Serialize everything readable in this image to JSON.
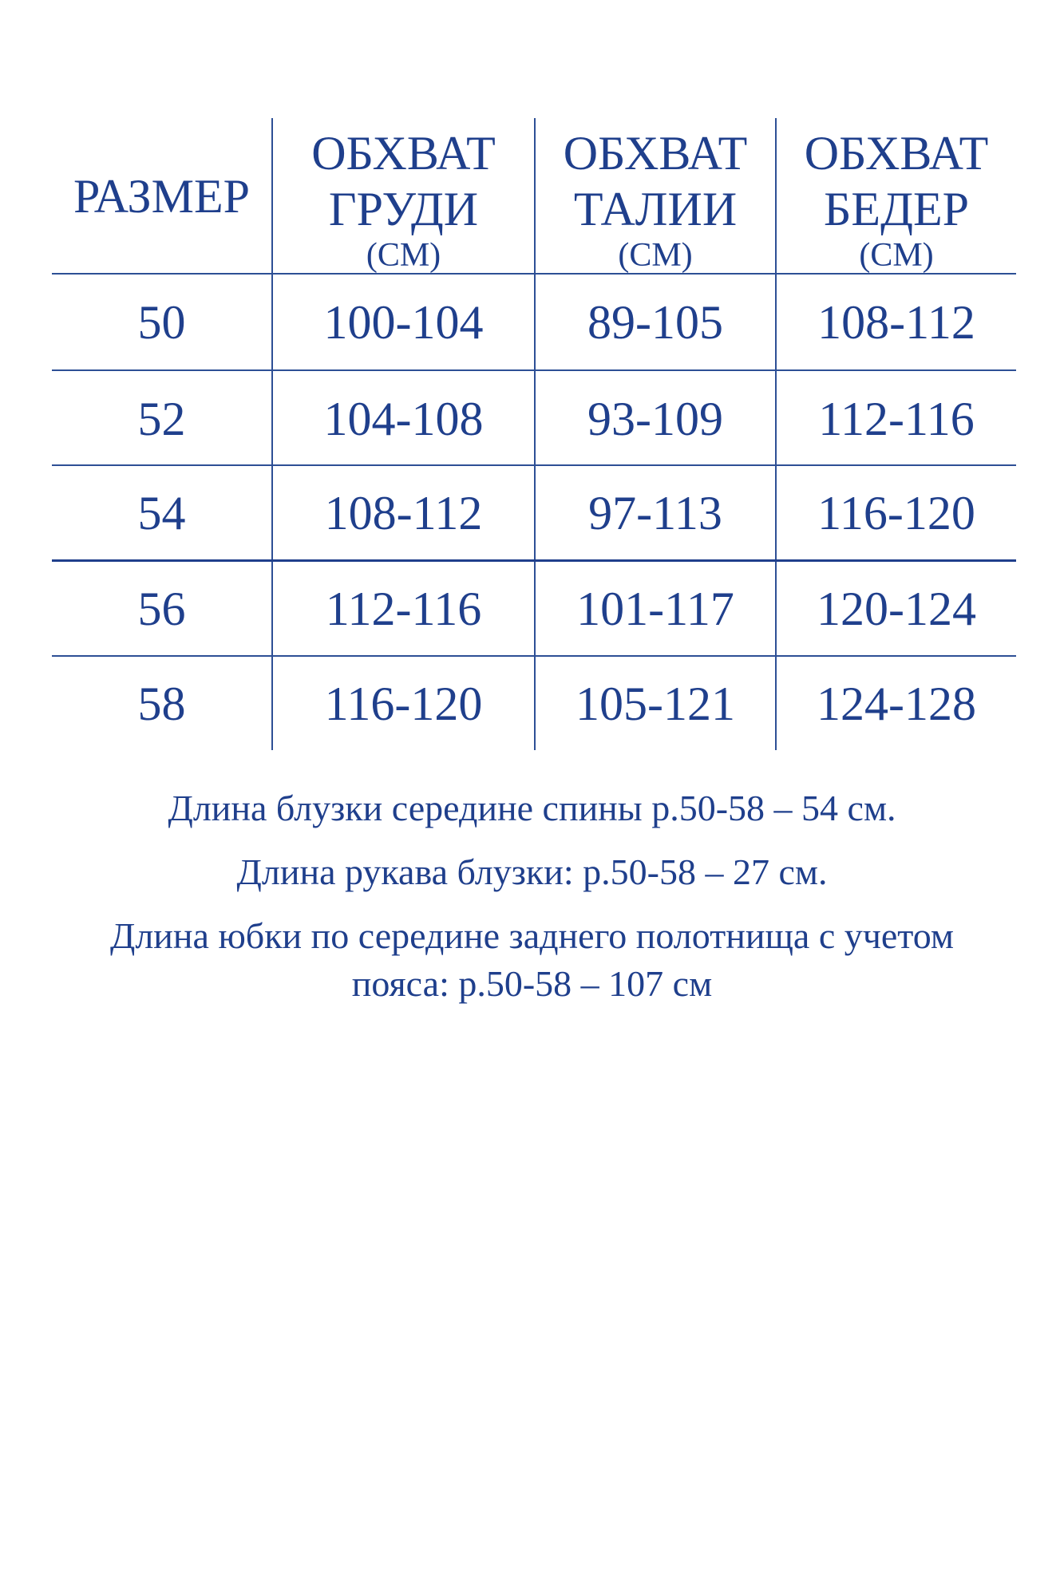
{
  "table": {
    "headers": [
      {
        "lines": [
          "РАЗМЕР"
        ],
        "unit": ""
      },
      {
        "lines": [
          "ОБХВАТ",
          "ГРУДИ"
        ],
        "unit": "(СМ)"
      },
      {
        "lines": [
          "ОБХВАТ",
          "ТАЛИИ"
        ],
        "unit": "(СМ)"
      },
      {
        "lines": [
          "ОБХВАТ",
          "БЕДЕР"
        ],
        "unit": "(СМ)"
      }
    ],
    "rows": [
      [
        "50",
        "100-104",
        "89-105",
        "108-112"
      ],
      [
        "52",
        "104-108",
        "93-109",
        "112-116"
      ],
      [
        "54",
        "108-112",
        "97-113",
        "116-120"
      ],
      [
        "56",
        "112-116",
        "101-117",
        "120-124"
      ],
      [
        "58",
        "116-120",
        "105-121",
        "124-128"
      ]
    ]
  },
  "notes": [
    "Длина блузки середине спины р.50-58 – 54 см.",
    "Длина рукава блузки: р.50-58 – 27 см.",
    "Длина юбки по середине заднего полотнища с учетом",
    "пояса: р.50-58 – 107 см"
  ],
  "colors": {
    "text": "#1f3f8c",
    "lines": "#2d4f95"
  }
}
